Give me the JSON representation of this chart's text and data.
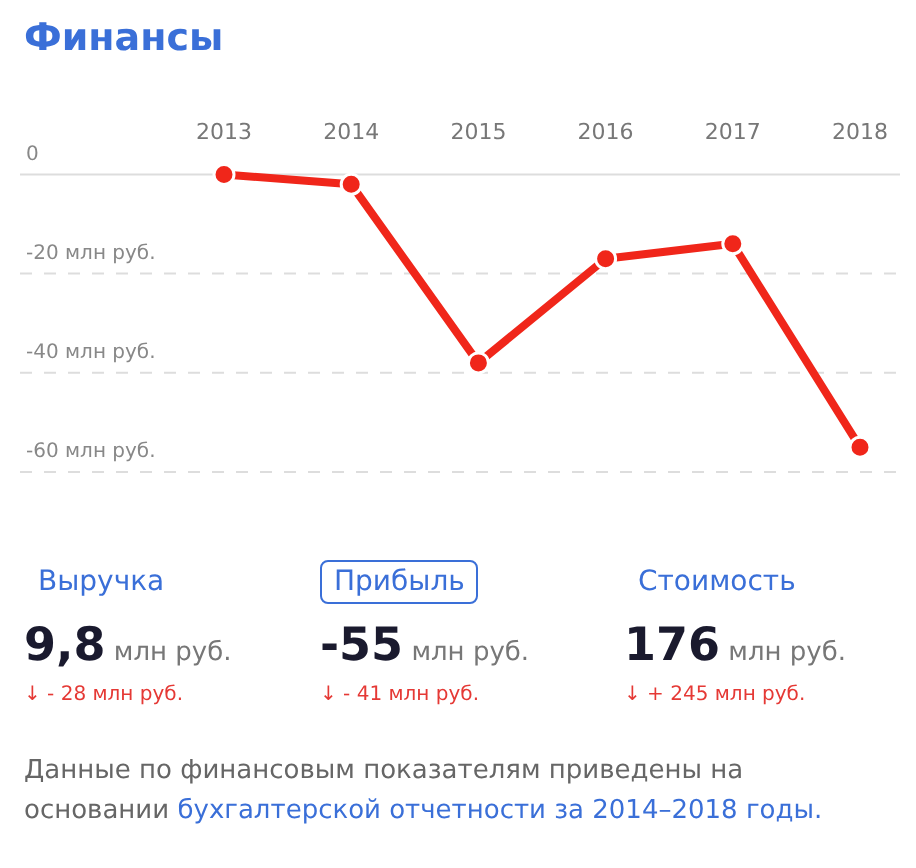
{
  "chart_data": [
    {
      "type": "line",
      "title": "Финансы",
      "categories": [
        "2013",
        "2014",
        "2015",
        "2016",
        "2017",
        "2018"
      ],
      "values": [
        0,
        -2,
        -38,
        -17,
        -14,
        -55
      ],
      "color": "#f0261a",
      "ylim": [
        -60,
        0
      ],
      "yticks": [
        0,
        {
          "value": -20,
          "label": "-20 млн руб."
        },
        {
          "value": -40,
          "label": "-40 млн руб."
        },
        {
          "value": -60,
          "label": "-60 млн руб."
        }
      ],
      "grid": "y",
      "marker": "circle"
    },
    {
      "type": "other",
      "categories": [
        "Выручка",
        "Прибыль",
        "Стоимость"
      ],
      "value_labels": [
        "9,8 млн руб.",
        "-55 млн руб.",
        "176 млн руб."
      ],
      "annotations": [
        "↓ - 28 млн руб.",
        "↓ - 41 млн руб.",
        "↓ + 245 млн руб.",
        "Данные по финансовым показателям приведены на основании",
        "бухгалтерской отчетности за 2014–2018 годы."
      ]
    }
  ]
}
